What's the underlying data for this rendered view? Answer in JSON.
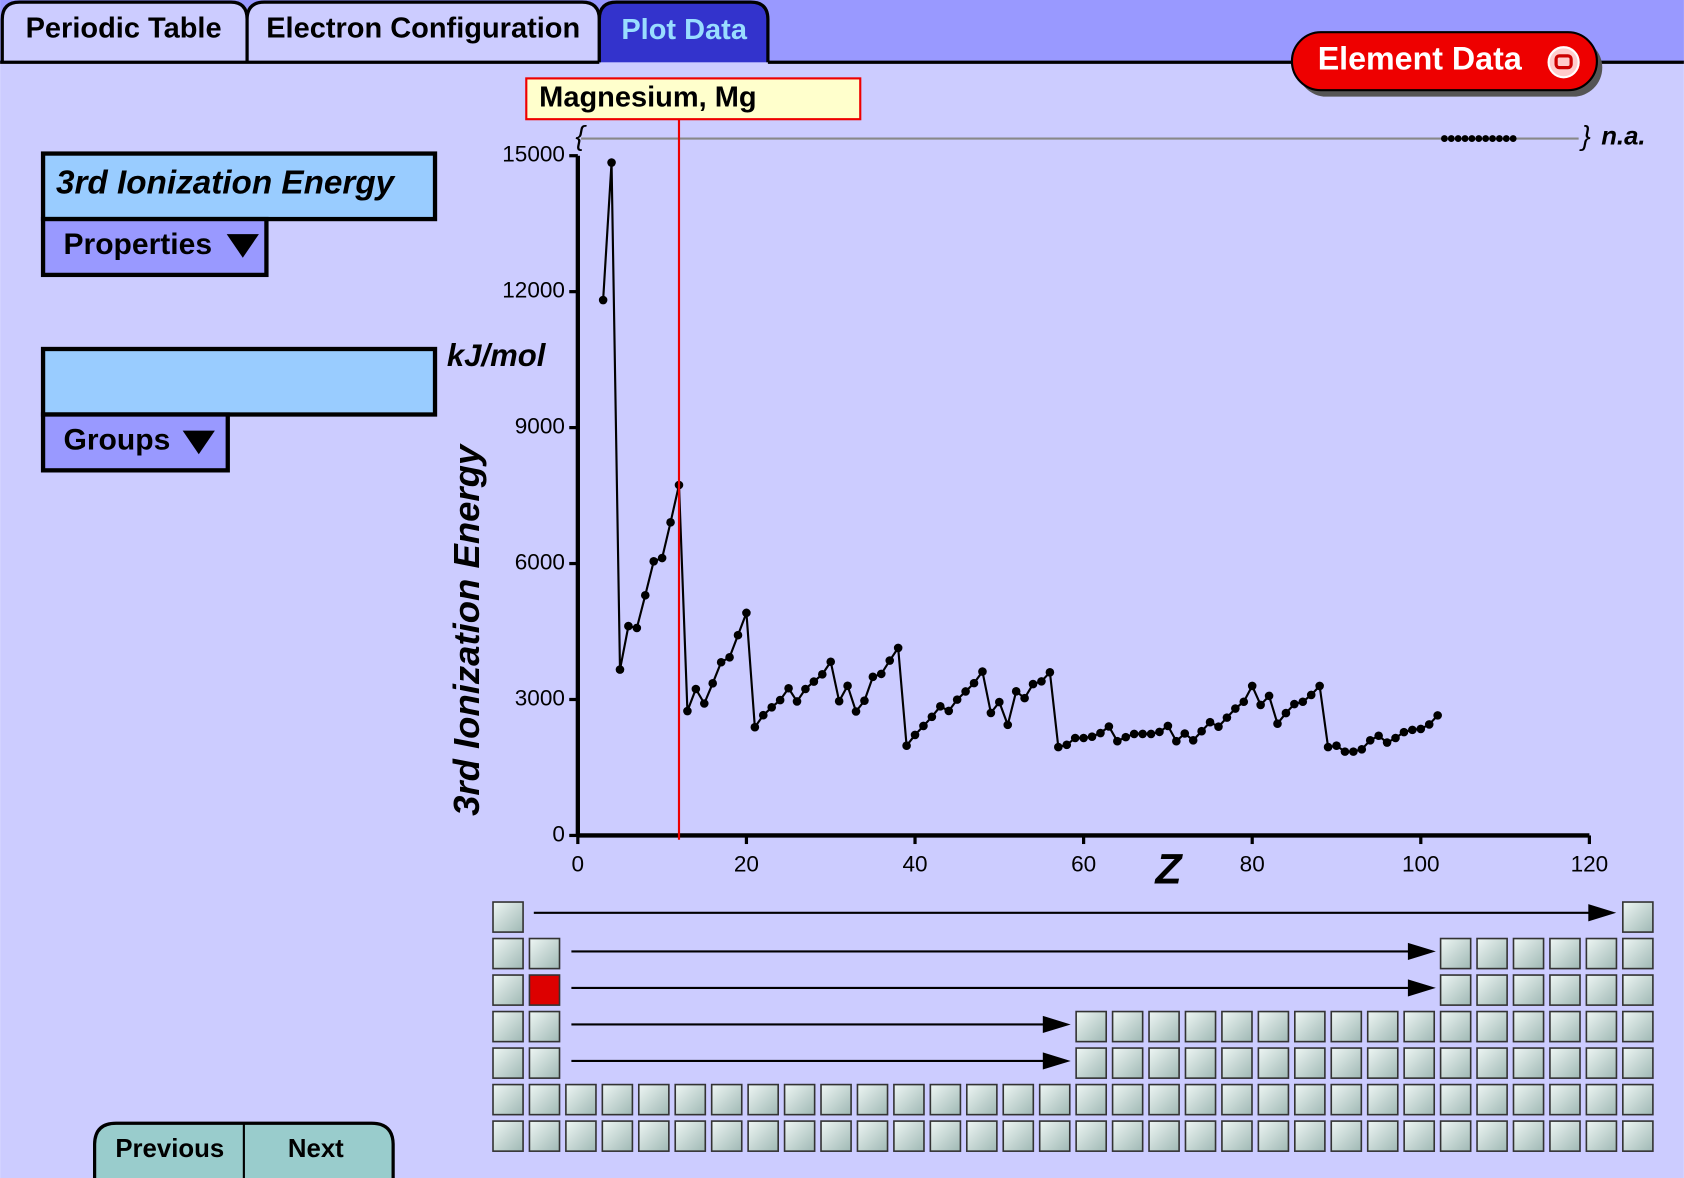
{
  "tabs": [
    "Periodic Table",
    "Electron Configuration",
    "Plot Data"
  ],
  "element_button": "Element Data",
  "property_selector": {
    "title": "3rd Ionization Energy",
    "button": "Properties"
  },
  "group_selector": {
    "button": "Groups"
  },
  "navigation": [
    "Previous",
    "Next"
  ],
  "chart_data": {
    "type": "line",
    "y_label": "3rd Ionization Energy",
    "unit": "kJ/mol",
    "x_label": "Z",
    "highlight": {
      "label": "Magnesium, Mg",
      "x": 12
    },
    "na_range": {
      "open": "{",
      "close": "}",
      "label": "n.a."
    },
    "color": "#000000",
    "x": [
      3,
      4,
      5,
      6,
      7,
      8,
      9,
      10,
      11,
      12,
      13,
      14,
      15,
      16,
      17,
      18,
      19,
      20,
      21,
      22,
      23,
      24,
      25,
      26,
      27,
      28,
      29,
      30,
      31,
      32,
      33,
      34,
      35,
      36,
      37,
      38,
      39,
      40,
      41,
      42,
      43,
      44,
      45,
      46,
      47,
      48,
      49,
      50,
      51,
      52,
      53,
      54,
      55,
      56,
      57,
      58,
      59,
      60,
      61,
      62,
      63,
      64,
      65,
      66,
      67,
      68,
      69,
      70,
      71,
      72,
      73,
      74,
      75,
      76,
      77,
      78,
      79,
      80,
      81,
      82,
      83,
      84,
      85,
      86,
      87,
      88,
      89,
      90,
      91,
      92,
      93,
      94,
      95,
      96,
      97,
      98,
      99,
      100,
      101,
      102
    ],
    "values": [
      11815,
      14849,
      3660,
      4620,
      4578,
      5300,
      6050,
      6122,
      6910,
      7733,
      2745,
      3232,
      2912,
      3357,
      3822,
      3931,
      4420,
      4912,
      2389,
      2653,
      2828,
      2987,
      3248,
      2957,
      3232,
      3395,
      3555,
      3833,
      2963,
      3302,
      2735,
      2974,
      3500,
      3565,
      3860,
      4138,
      1980,
      2218,
      2416,
      2618,
      2850,
      2747,
      2997,
      3177,
      3361,
      3616,
      2704,
      2943,
      2440,
      3180,
      3030,
      3340,
      3400,
      3600,
      1950,
      2000,
      2150,
      2150,
      2180,
      2260,
      2404,
      2080,
      2170,
      2240,
      2240,
      2240,
      2285,
      2417,
      2080,
      2250,
      2100,
      2300,
      2500,
      2400,
      2600,
      2800,
      2950,
      3300,
      2880,
      3080,
      2466,
      2700,
      2900,
      2950,
      3100,
      3300,
      1950,
      1980,
      1850,
      1850,
      1900,
      2100,
      2200,
      2050,
      2150,
      2280,
      2330,
      2350,
      2450,
      2650
    ],
    "xlim": [
      0,
      120
    ],
    "xticks": [
      0,
      20,
      40,
      60,
      80,
      100,
      120
    ],
    "ylim": [
      0,
      15000
    ],
    "yticks": [
      0,
      3000,
      6000,
      9000,
      12000,
      15000
    ]
  }
}
